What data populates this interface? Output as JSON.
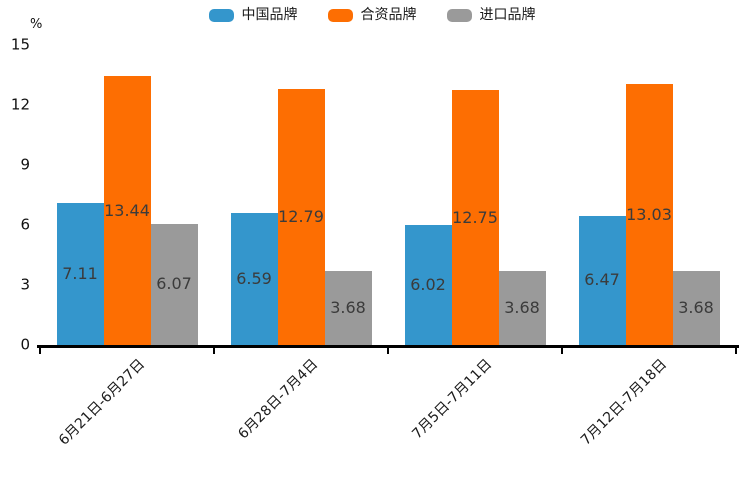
{
  "chart_data": {
    "type": "bar",
    "title": "",
    "y_unit_label": "%",
    "categories": [
      "6月21日-6月27日",
      "6月28日-7月4日",
      "7月5日-7月11日",
      "7月12日-7月18日"
    ],
    "series": [
      {
        "name": "中国品牌",
        "color": "#3496CC",
        "values": [
          7.11,
          6.59,
          6.02,
          6.47
        ]
      },
      {
        "name": "合资品牌",
        "color": "#FD6E02",
        "values": [
          13.44,
          12.79,
          12.75,
          13.03
        ]
      },
      {
        "name": "进口品牌",
        "color": "#9A9A9A",
        "values": [
          6.07,
          3.68,
          3.68,
          3.68
        ]
      }
    ],
    "ylim": [
      0,
      15
    ],
    "yticks": [
      0,
      3,
      6,
      9,
      12,
      15
    ],
    "grid": false,
    "legend_position": "top-center",
    "value_label_decimals": 2,
    "colors": {
      "bar_value_text": "#3B3B3B",
      "axis_text": "#111111",
      "axis_line": "#000000"
    }
  }
}
